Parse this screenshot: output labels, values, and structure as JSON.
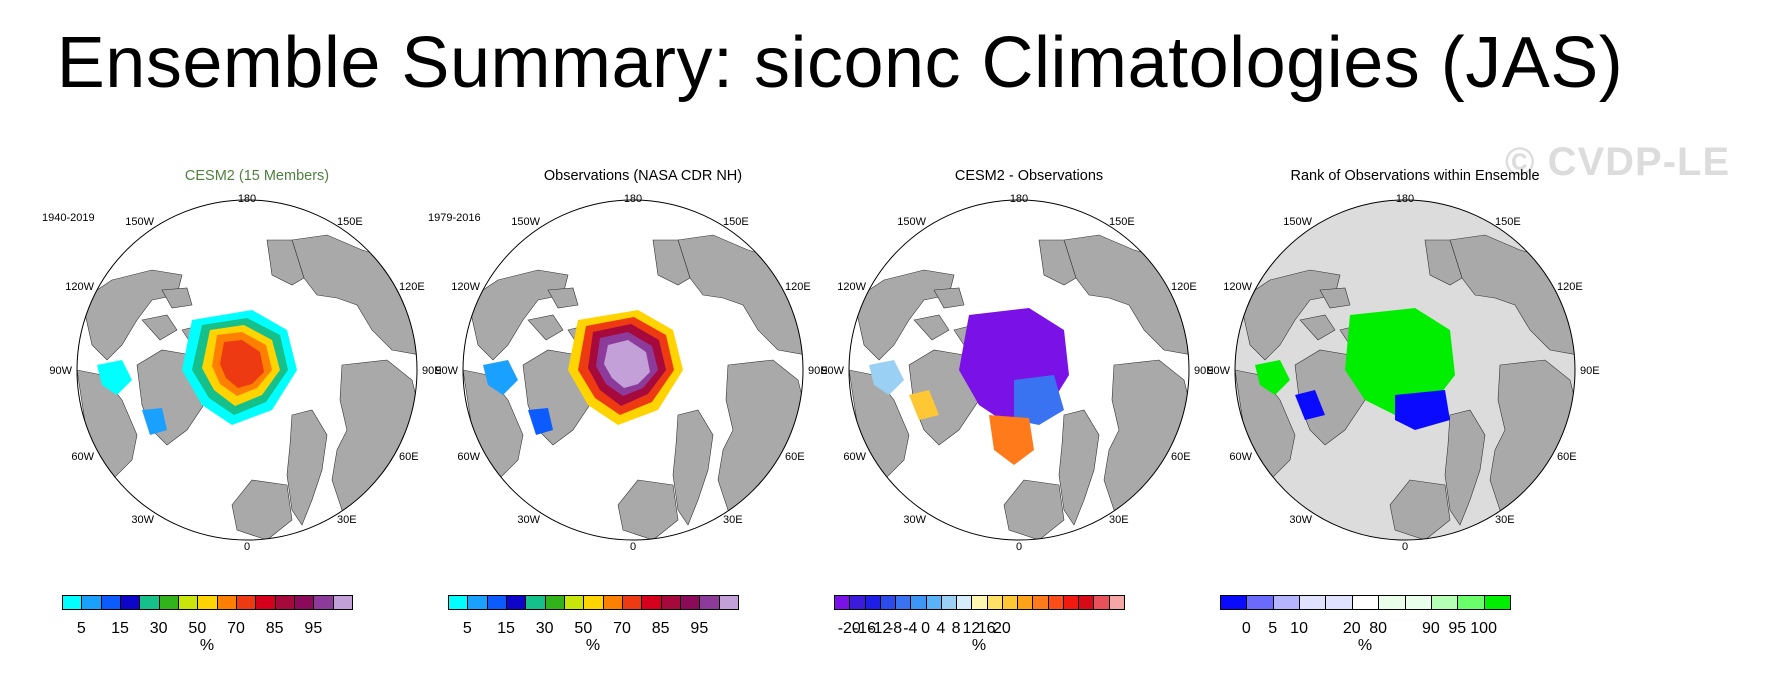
{
  "title": "Ensemble Summary: siconc Climatologies (JAS)",
  "watermark": "© CVDP-LE",
  "lon_labels": [
    "180",
    "150E",
    "120E",
    "90E",
    "60E",
    "30E",
    "0",
    "30W",
    "60W",
    "90W",
    "120W",
    "150W"
  ],
  "colors": {
    "land": "#a9a9a9",
    "ocean": "#ffffff",
    "wm_rank_bg": "#dcdcdc"
  },
  "panels": [
    {
      "title": "CESM2 (15 Members)",
      "title_color": "#4f7f3f",
      "period": "1940-2019",
      "colorbar": {
        "colors": [
          "#00ffff",
          "#1aa0ff",
          "#0c5bff",
          "#0d05c9",
          "#16c08a",
          "#31b31c",
          "#c9e60b",
          "#ffd400",
          "#ff7f00",
          "#ee3a12",
          "#d7001c",
          "#a60a3c",
          "#8b0a5a",
          "#8c3b9b",
          "#c3a0d8"
        ],
        "labels": [
          "5",
          "15",
          "30",
          "50",
          "70",
          "85",
          "95"
        ],
        "label_slots": [
          1,
          3,
          5,
          7,
          9,
          11,
          13
        ],
        "units": "%"
      }
    },
    {
      "title": "Observations (NASA CDR NH)",
      "title_color": "#000000",
      "period": "1979-2016",
      "colorbar": {
        "colors": [
          "#00ffff",
          "#1aa0ff",
          "#0c5bff",
          "#0d05c9",
          "#16c08a",
          "#31b31c",
          "#c9e60b",
          "#ffd400",
          "#ff7f00",
          "#ee3a12",
          "#d7001c",
          "#a60a3c",
          "#8b0a5a",
          "#8c3b9b",
          "#c3a0d8"
        ],
        "labels": [
          "5",
          "15",
          "30",
          "50",
          "70",
          "85",
          "95"
        ],
        "label_slots": [
          1,
          3,
          5,
          7,
          9,
          11,
          13
        ],
        "units": "%"
      }
    },
    {
      "title": "CESM2 - Observations",
      "title_color": "#000000",
      "period": "",
      "colorbar": {
        "colors": [
          "#7a11e6",
          "#3d1bdc",
          "#1e1ee6",
          "#2b4bea",
          "#3a73f1",
          "#3b96f6",
          "#5ab3f7",
          "#9bd0f5",
          "#d7ecfa",
          "#fff6b0",
          "#ffe066",
          "#ffc733",
          "#ffa31a",
          "#ff7a1a",
          "#ff4d1a",
          "#f01a10",
          "#d70a18",
          "#e8505a",
          "#f7a6a6"
        ],
        "labels": [
          "-20",
          "-16",
          "-12",
          "-8",
          "-4",
          "0",
          "4",
          "8",
          "12",
          "16",
          "20"
        ],
        "label_slots": [
          1,
          2,
          3,
          4,
          5,
          6,
          7,
          8,
          9,
          10,
          11
        ],
        "units": "%"
      }
    },
    {
      "title": "Rank of Observations within Ensemble",
      "title_color": "#000000",
      "period": "",
      "colorbar": {
        "colors": [
          "#0a0aff",
          "#6a6aff",
          "#b4b4ff",
          "#e0e0ff",
          "#e0e0ff",
          "#ffffff",
          "#e9ffe9",
          "#e9ffe9",
          "#b4ffb4",
          "#6aff6a",
          "#00ee00"
        ],
        "labels": [
          "0",
          "5",
          "10",
          "20",
          "80",
          "90",
          "95",
          "100"
        ],
        "label_slots": [
          1,
          2,
          3,
          5,
          6,
          8,
          9,
          10
        ],
        "units": "%"
      }
    }
  ]
}
